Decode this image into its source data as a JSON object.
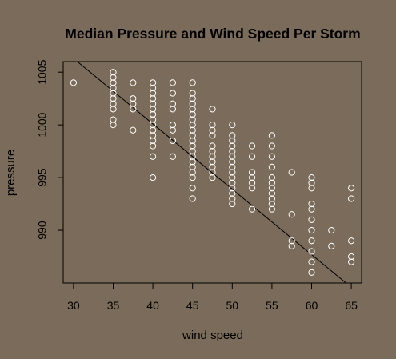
{
  "chart_data": {
    "type": "scatter",
    "title": "Median Pressure and Wind Speed Per Storm",
    "xlabel": "wind speed",
    "ylabel": "pressure",
    "xlim": [
      28.7,
      66.3
    ],
    "ylim": [
      985,
      1006
    ],
    "x_ticks": [
      30,
      35,
      40,
      45,
      50,
      55,
      60,
      65
    ],
    "y_ticks": [
      990,
      995,
      1000,
      1005
    ],
    "grid": false,
    "colors": {
      "background": "#7a6b5a",
      "points": "#ffffff",
      "fit_line": "#000000"
    },
    "fit_line": {
      "x1": 30,
      "y1": 1006.3,
      "x2": 64.5,
      "y2": 984.9
    },
    "points": [
      [
        30,
        1004
      ],
      [
        35,
        1005
      ],
      [
        35,
        1004.5
      ],
      [
        35,
        1004
      ],
      [
        35,
        1003.5
      ],
      [
        35,
        1003
      ],
      [
        35,
        1002.5
      ],
      [
        35,
        1002
      ],
      [
        35,
        1001.5
      ],
      [
        35,
        1000.5
      ],
      [
        35,
        1000
      ],
      [
        37.5,
        1004
      ],
      [
        37.5,
        1002.5
      ],
      [
        37.5,
        1002
      ],
      [
        37.5,
        1001.5
      ],
      [
        37.5,
        999.5
      ],
      [
        40,
        1004
      ],
      [
        40,
        1003.5
      ],
      [
        40,
        1003
      ],
      [
        40,
        1002.5
      ],
      [
        40,
        1002
      ],
      [
        40,
        1001.5
      ],
      [
        40,
        1001
      ],
      [
        40,
        1000.5
      ],
      [
        40,
        1000
      ],
      [
        40,
        999.5
      ],
      [
        40,
        999
      ],
      [
        40,
        998.5
      ],
      [
        40,
        998
      ],
      [
        40,
        997
      ],
      [
        40,
        995
      ],
      [
        42.5,
        1004
      ],
      [
        42.5,
        1003
      ],
      [
        42.5,
        1002
      ],
      [
        42.5,
        1001.5
      ],
      [
        42.5,
        1000
      ],
      [
        42.5,
        999.5
      ],
      [
        42.5,
        998.5
      ],
      [
        42.5,
        997
      ],
      [
        45,
        1004
      ],
      [
        45,
        1003
      ],
      [
        45,
        1002.5
      ],
      [
        45,
        1002
      ],
      [
        45,
        1001.5
      ],
      [
        45,
        1001
      ],
      [
        45,
        1000.5
      ],
      [
        45,
        1000
      ],
      [
        45,
        999.5
      ],
      [
        45,
        999
      ],
      [
        45,
        998.5
      ],
      [
        45,
        998
      ],
      [
        45,
        997.5
      ],
      [
        45,
        997
      ],
      [
        45,
        996.5
      ],
      [
        45,
        996
      ],
      [
        45,
        995.5
      ],
      [
        45,
        995
      ],
      [
        45,
        994
      ],
      [
        45,
        993
      ],
      [
        47.5,
        1001.5
      ],
      [
        47.5,
        1000
      ],
      [
        47.5,
        999.5
      ],
      [
        47.5,
        999
      ],
      [
        47.5,
        998
      ],
      [
        47.5,
        997.5
      ],
      [
        47.5,
        997
      ],
      [
        47.5,
        996.5
      ],
      [
        47.5,
        996
      ],
      [
        47.5,
        995.5
      ],
      [
        47.5,
        995
      ],
      [
        50,
        1000
      ],
      [
        50,
        999
      ],
      [
        50,
        998.5
      ],
      [
        50,
        998
      ],
      [
        50,
        997.5
      ],
      [
        50,
        997
      ],
      [
        50,
        996.5
      ],
      [
        50,
        996
      ],
      [
        50,
        995.5
      ],
      [
        50,
        995
      ],
      [
        50,
        994.5
      ],
      [
        50,
        994
      ],
      [
        50,
        993.5
      ],
      [
        50,
        993
      ],
      [
        50,
        992.5
      ],
      [
        52.5,
        998
      ],
      [
        52.5,
        997
      ],
      [
        52.5,
        995.5
      ],
      [
        52.5,
        995
      ],
      [
        52.5,
        994.5
      ],
      [
        52.5,
        994
      ],
      [
        52.5,
        992
      ],
      [
        55,
        999
      ],
      [
        55,
        998
      ],
      [
        55,
        997
      ],
      [
        55,
        996
      ],
      [
        55,
        995
      ],
      [
        55,
        994.5
      ],
      [
        55,
        994
      ],
      [
        55,
        993.5
      ],
      [
        55,
        993
      ],
      [
        55,
        992.5
      ],
      [
        55,
        992
      ],
      [
        57.5,
        995.5
      ],
      [
        57.5,
        991.5
      ],
      [
        57.5,
        989
      ],
      [
        57.5,
        988.5
      ],
      [
        60,
        995
      ],
      [
        60,
        994.5
      ],
      [
        60,
        994
      ],
      [
        60,
        992.5
      ],
      [
        60,
        992
      ],
      [
        60,
        991
      ],
      [
        60,
        990
      ],
      [
        60,
        989
      ],
      [
        60,
        988
      ],
      [
        60,
        987
      ],
      [
        60,
        986
      ],
      [
        62.5,
        990
      ],
      [
        62.5,
        988.5
      ],
      [
        65,
        994
      ],
      [
        65,
        993
      ],
      [
        65,
        989
      ],
      [
        65,
        987.5
      ],
      [
        65,
        987
      ]
    ]
  }
}
